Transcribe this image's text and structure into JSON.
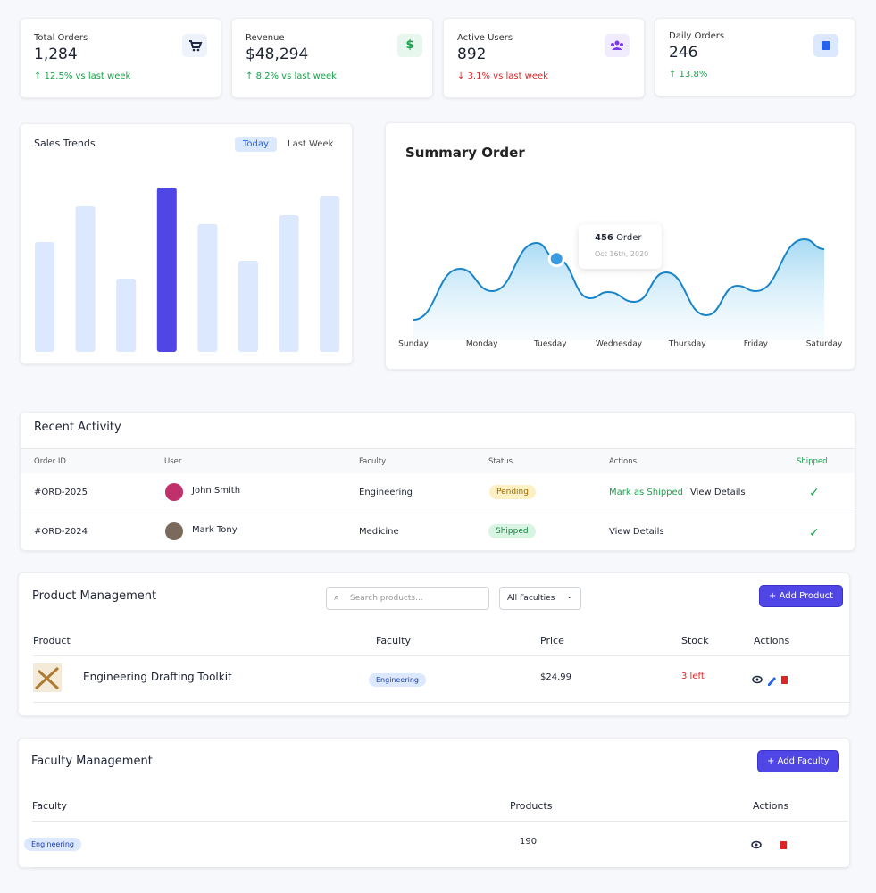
{
  "stats": [
    {
      "label": "Total Orders",
      "value": "1,284",
      "change": "12.5% vs last week",
      "trend": "up"
    },
    {
      "label": "Revenue",
      "value": "$48,294",
      "change": "8.2% vs last week",
      "trend": "up"
    },
    {
      "label": "Active Users",
      "value": "892",
      "change": "3.1% vs last week",
      "trend": "down"
    },
    {
      "label": "Daily Orders",
      "value": "246",
      "change": "↑ 13.8%"
    }
  ],
  "sales_tabs": [
    "Today",
    "Last Week"
  ],
  "chart_data": [
    {
      "type": "bar",
      "title": "Sales Trends",
      "values": [
        123,
        163,
        82,
        184,
        143,
        102,
        153,
        174
      ],
      "colors": [
        "#dbe8fd",
        "#dbe8fd",
        "#dbe8fd",
        "#4f46e5",
        "#dbe8fd",
        "#dbe8fd",
        "#dbe8fd",
        "#dbe8fd"
      ],
      "ylim": [
        0,
        200
      ]
    },
    {
      "type": "line",
      "title": "Summary Order",
      "categories": [
        "Sunday",
        "Monday",
        "Tuesday",
        "Wednesday",
        "Thursday",
        "Friday",
        "Saturday"
      ],
      "x": [
        0,
        0.68,
        1.15,
        1.8,
        2.09,
        2.58,
        2.84,
        3.23,
        3.69,
        4.28,
        4.73,
        5.0,
        5.71,
        6
      ],
      "values": [
        115,
        400,
        275,
        545,
        456,
        235,
        270,
        215,
        380,
        140,
        305,
        275,
        565,
        510
      ],
      "xlim": [
        0,
        6
      ],
      "ylim": [
        0,
        600
      ],
      "color": "#1a84c9",
      "tooltip": {
        "label": "Order",
        "date": "Oct 16th, 2020"
      }
    }
  ],
  "recent_activity": {
    "title": "Recent Activity",
    "columns": [
      "Order ID",
      "User",
      "Faculty",
      "Status",
      "Actions",
      "Shipped"
    ],
    "rows": [
      {
        "order_id": "#ORD-2025",
        "user": "John Smith",
        "faculty": "Engineering",
        "status": "Pending",
        "actions": [
          "Mark as Shipped",
          "View Details"
        ]
      },
      {
        "order_id": "#ORD-2024",
        "user": "Mark Tony",
        "faculty": "Medicine",
        "status": "Shipped",
        "actions": [
          "View Details"
        ]
      }
    ]
  },
  "products": {
    "title": "Product Management",
    "search_placeholder": "Search products...",
    "filter": "All Faculties",
    "button": "Add Product",
    "columns": [
      "Product",
      "Faculty",
      "Price",
      "Stock",
      "Actions"
    ],
    "rows": [
      {
        "product": "Engineering Drafting Toolkit",
        "faculty": "Engineering",
        "price": "$24.99",
        "stock": "3 left"
      }
    ]
  },
  "faculties": {
    "title": "Faculty Management",
    "button": "Add Faculty",
    "columns": [
      "Faculty",
      "Products",
      "Actions"
    ],
    "rows": [
      {
        "faculty": "Engineering",
        "products": "190"
      }
    ]
  }
}
